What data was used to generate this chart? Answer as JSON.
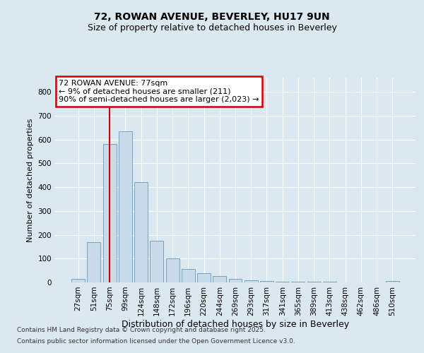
{
  "title1": "72, ROWAN AVENUE, BEVERLEY, HU17 9UN",
  "title2": "Size of property relative to detached houses in Beverley",
  "xlabel": "Distribution of detached houses by size in Beverley",
  "ylabel": "Number of detached properties",
  "categories": [
    "27sqm",
    "51sqm",
    "75sqm",
    "99sqm",
    "124sqm",
    "148sqm",
    "172sqm",
    "196sqm",
    "220sqm",
    "244sqm",
    "269sqm",
    "293sqm",
    "317sqm",
    "341sqm",
    "365sqm",
    "389sqm",
    "413sqm",
    "438sqm",
    "462sqm",
    "486sqm",
    "510sqm"
  ],
  "values": [
    15,
    168,
    580,
    635,
    420,
    175,
    100,
    55,
    40,
    27,
    15,
    8,
    5,
    4,
    3,
    2,
    2,
    1,
    1,
    0,
    5
  ],
  "bar_color": "#c9daea",
  "bar_edge_color": "#6699bb",
  "vline_x_idx": 2,
  "vline_color": "#cc0000",
  "annotation_text": "72 ROWAN AVENUE: 77sqm\n← 9% of detached houses are smaller (211)\n90% of semi-detached houses are larger (2,023) →",
  "annotation_box_facecolor": "#ffffff",
  "annotation_box_edgecolor": "#cc0000",
  "background_color": "#dce8f0",
  "plot_bg_color": "#dce8f0",
  "footer1": "Contains HM Land Registry data © Crown copyright and database right 2025.",
  "footer2": "Contains public sector information licensed under the Open Government Licence v3.0.",
  "ylim": [
    0,
    860
  ],
  "yticks": [
    0,
    100,
    200,
    300,
    400,
    500,
    600,
    700,
    800
  ],
  "title1_fontsize": 10,
  "title2_fontsize": 9,
  "xlabel_fontsize": 9,
  "ylabel_fontsize": 8,
  "tick_fontsize": 7.5,
  "ann_fontsize": 8,
  "footer_fontsize": 6.5
}
